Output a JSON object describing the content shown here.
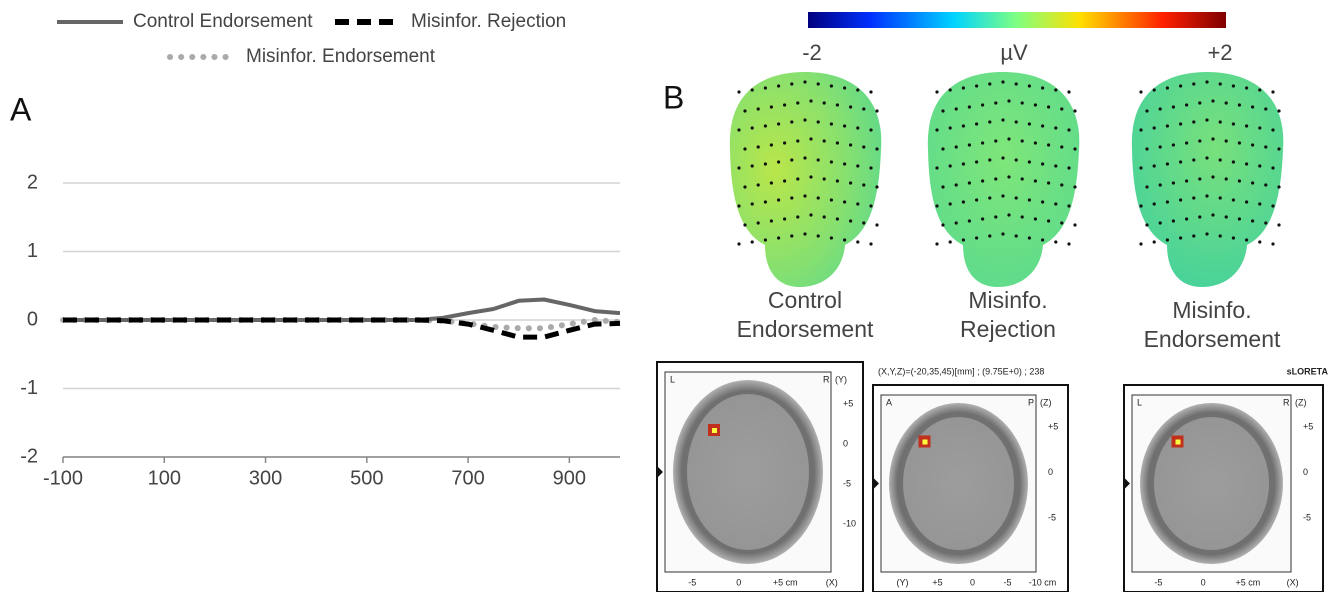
{
  "chart_data": {
    "type": "line",
    "x": [
      -100,
      -50,
      0,
      50,
      100,
      150,
      200,
      250,
      300,
      350,
      400,
      450,
      500,
      550,
      600,
      650,
      700,
      750,
      800,
      850,
      900,
      950,
      1000
    ],
    "series": [
      {
        "name": "Control Endorsement",
        "color": "#666666",
        "style": "solid",
        "values": [
          0,
          0,
          0,
          0,
          0,
          0,
          0,
          0,
          0,
          0,
          0,
          0,
          0,
          0,
          0,
          0.03,
          0.1,
          0.16,
          0.28,
          0.3,
          0.22,
          0.13,
          0.1
        ]
      },
      {
        "name": "Misinfor. Rejection",
        "color": "#000000",
        "style": "dashed",
        "values": [
          0,
          0,
          0,
          0,
          0,
          0,
          0,
          0,
          0,
          0,
          0,
          0,
          0,
          0,
          0,
          -0.01,
          -0.06,
          -0.15,
          -0.25,
          -0.25,
          -0.15,
          -0.06,
          -0.05
        ]
      },
      {
        "name": "Misinfor. Endorsement",
        "color": "#aaaaaa",
        "style": "dotted",
        "values": [
          0,
          0,
          0,
          0,
          0,
          0,
          0,
          0,
          0,
          0,
          0,
          0,
          0,
          0,
          0,
          -0.01,
          -0.05,
          -0.1,
          -0.12,
          -0.12,
          -0.06,
          0,
          -0.03
        ]
      }
    ],
    "xlim": [
      -100,
      1000
    ],
    "xticks": [
      -100,
      100,
      300,
      500,
      700,
      900
    ],
    "ylim": [
      -2,
      2
    ],
    "yticks": [
      -2,
      -1,
      0,
      1,
      2
    ],
    "grid": true
  },
  "panel_labels": [
    "A",
    "B"
  ],
  "colorbar": {
    "min_label": "-2",
    "unit": "µV",
    "max_label": "+2"
  },
  "topomaps": [
    {
      "label": [
        "Control",
        "Endorsement"
      ]
    },
    {
      "label": [
        "Misinfo.",
        "Rejection"
      ]
    },
    {
      "label": [
        "Misinfo.",
        "Endorsement"
      ]
    }
  ],
  "sloreta": {
    "info": "(X,Y,Z)=(-20,35,45)[mm] ; (9.75E+0) ; 238",
    "method": "sLORETA",
    "slices": [
      {
        "left": "L",
        "right": "R",
        "axis": "(Y)",
        "side_ticks": [
          "+5",
          "0",
          "-5",
          "-10"
        ],
        "bottom_ticks": [
          "-5",
          "0",
          "+5 cm",
          "(X)"
        ]
      },
      {
        "left": "A",
        "right": "P",
        "axis": "(Z)",
        "side_ticks": [
          "+5",
          "0",
          "-5"
        ],
        "bottom_ticks": [
          "(Y)",
          "+5",
          "0",
          "-5",
          "-10 cm"
        ]
      },
      {
        "left": "L",
        "right": "R",
        "axis": "(Z)",
        "side_ticks": [
          "+5",
          "0",
          "-5"
        ],
        "bottom_ticks": [
          "-5",
          "0",
          "+5 cm",
          "(X)"
        ]
      }
    ]
  }
}
